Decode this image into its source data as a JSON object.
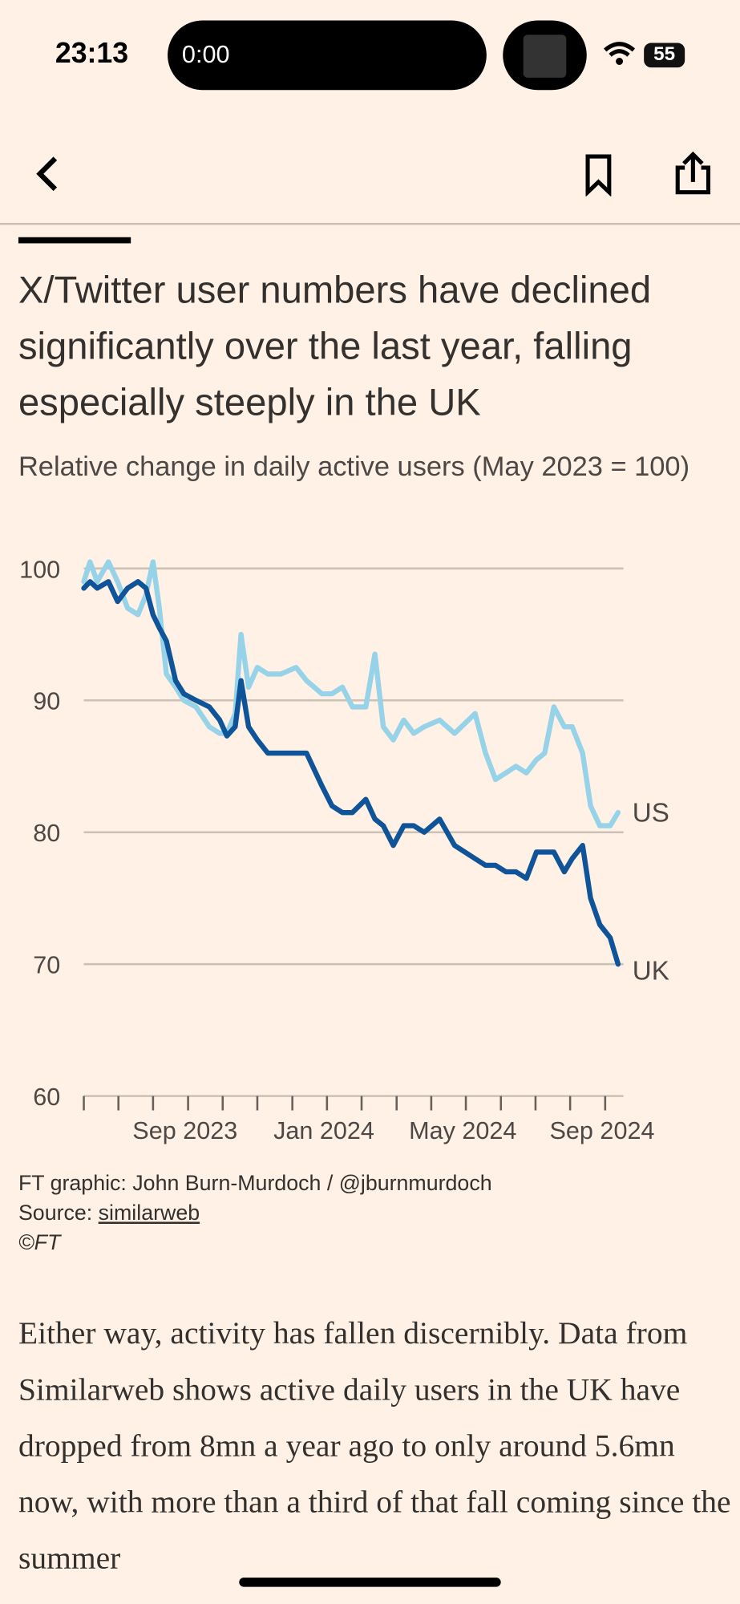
{
  "status_bar": {
    "time": "23:13",
    "media_time": "0:00",
    "battery": "55"
  },
  "article": {
    "paragraph": "Either way, activity has fallen discernibly. Data from Similarweb shows active daily users in the UK have dropped from 8mn a year ago to only around 5.6mn now, with more than a third of that fall coming since the summer"
  },
  "chart_data": {
    "type": "line",
    "title": "X/Twitter user numbers have declined significantly over the last year, falling especially steeply in the UK",
    "subtitle": "Relative change in daily active users (May 2023 = 100)",
    "credit": "FT graphic: John Burn-Murdoch / @jburnmurdoch",
    "source_label": "Source:",
    "source_link": "similarweb",
    "copyright": "©FT",
    "x": [
      2023.417,
      2023.432,
      2023.449,
      2023.476,
      2023.498,
      2023.522,
      2023.547,
      2023.566,
      2023.583,
      2023.598,
      2023.615,
      2023.637,
      2023.657,
      2023.686,
      2023.718,
      2023.743,
      2023.76,
      2023.78,
      2023.794,
      2023.812,
      2023.833,
      2023.858,
      2023.89,
      2023.926,
      2023.951,
      2023.988,
      2024.012,
      2024.037,
      2024.061,
      2024.093,
      2024.115,
      2024.135,
      2024.159,
      2024.184,
      2024.208,
      2024.233,
      2024.27,
      2024.306,
      2024.355,
      2024.38,
      2024.404,
      2024.429,
      2024.453,
      2024.478,
      2024.502,
      2024.522,
      2024.544,
      2024.569,
      2024.588,
      2024.613,
      2024.632,
      2024.654,
      2024.679,
      2024.698
    ],
    "series": [
      {
        "name": "US",
        "color": "#96d2e8",
        "values": [
          99,
          100.5,
          99,
          100.5,
          99,
          97,
          96.5,
          98,
          100.5,
          97,
          92,
          91,
          90,
          89.5,
          88,
          87.5,
          87.5,
          89,
          95,
          91,
          92.5,
          92,
          92,
          92.5,
          91.5,
          90.5,
          90.5,
          91,
          89.5,
          89.5,
          93.5,
          88,
          87,
          88.5,
          87.5,
          88,
          88.5,
          87.5,
          89,
          86,
          84,
          84.5,
          85,
          84.5,
          85.5,
          86,
          89.5,
          88,
          88,
          86,
          82,
          80.5,
          80.5,
          81.5
        ]
      },
      {
        "name": "UK",
        "color": "#0f5499",
        "values": [
          98.5,
          99,
          98.5,
          99,
          97.5,
          98.5,
          99,
          98.5,
          96.5,
          95.5,
          94.5,
          91.5,
          90.5,
          90,
          89.5,
          88.5,
          87.3,
          88,
          91.5,
          88,
          87,
          86,
          86,
          86,
          86,
          83.5,
          82,
          81.5,
          81.5,
          82.5,
          81,
          80.5,
          79,
          80.5,
          80.5,
          80,
          81,
          79,
          78,
          77.5,
          77.5,
          77,
          77,
          76.5,
          78.5,
          78.5,
          78.5,
          77,
          78,
          79,
          75,
          73,
          72,
          70
        ]
      }
    ],
    "xlim": [
      2023.417,
      2024.706
    ],
    "xticks": [
      {
        "value": 2023.417,
        "label": null
      },
      {
        "value": 2023.5,
        "label": null
      },
      {
        "value": 2023.583,
        "label": null
      },
      {
        "value": 2023.667,
        "label": "Sep 2023"
      },
      {
        "value": 2023.75,
        "label": null
      },
      {
        "value": 2023.833,
        "label": null
      },
      {
        "value": 2023.917,
        "label": null
      },
      {
        "value": 2024.0,
        "label": "Jan 2024"
      },
      {
        "value": 2024.083,
        "label": null
      },
      {
        "value": 2024.167,
        "label": null
      },
      {
        "value": 2024.25,
        "label": null
      },
      {
        "value": 2024.333,
        "label": "May 2024"
      },
      {
        "value": 2024.417,
        "label": null
      },
      {
        "value": 2024.5,
        "label": null
      },
      {
        "value": 2024.583,
        "label": null
      },
      {
        "value": 2024.667,
        "label": "Sep 2024"
      }
    ],
    "ylim": [
      60,
      100
    ],
    "yticks": [
      60,
      70,
      80,
      90,
      100
    ],
    "grid": true,
    "legend": "line-end"
  }
}
